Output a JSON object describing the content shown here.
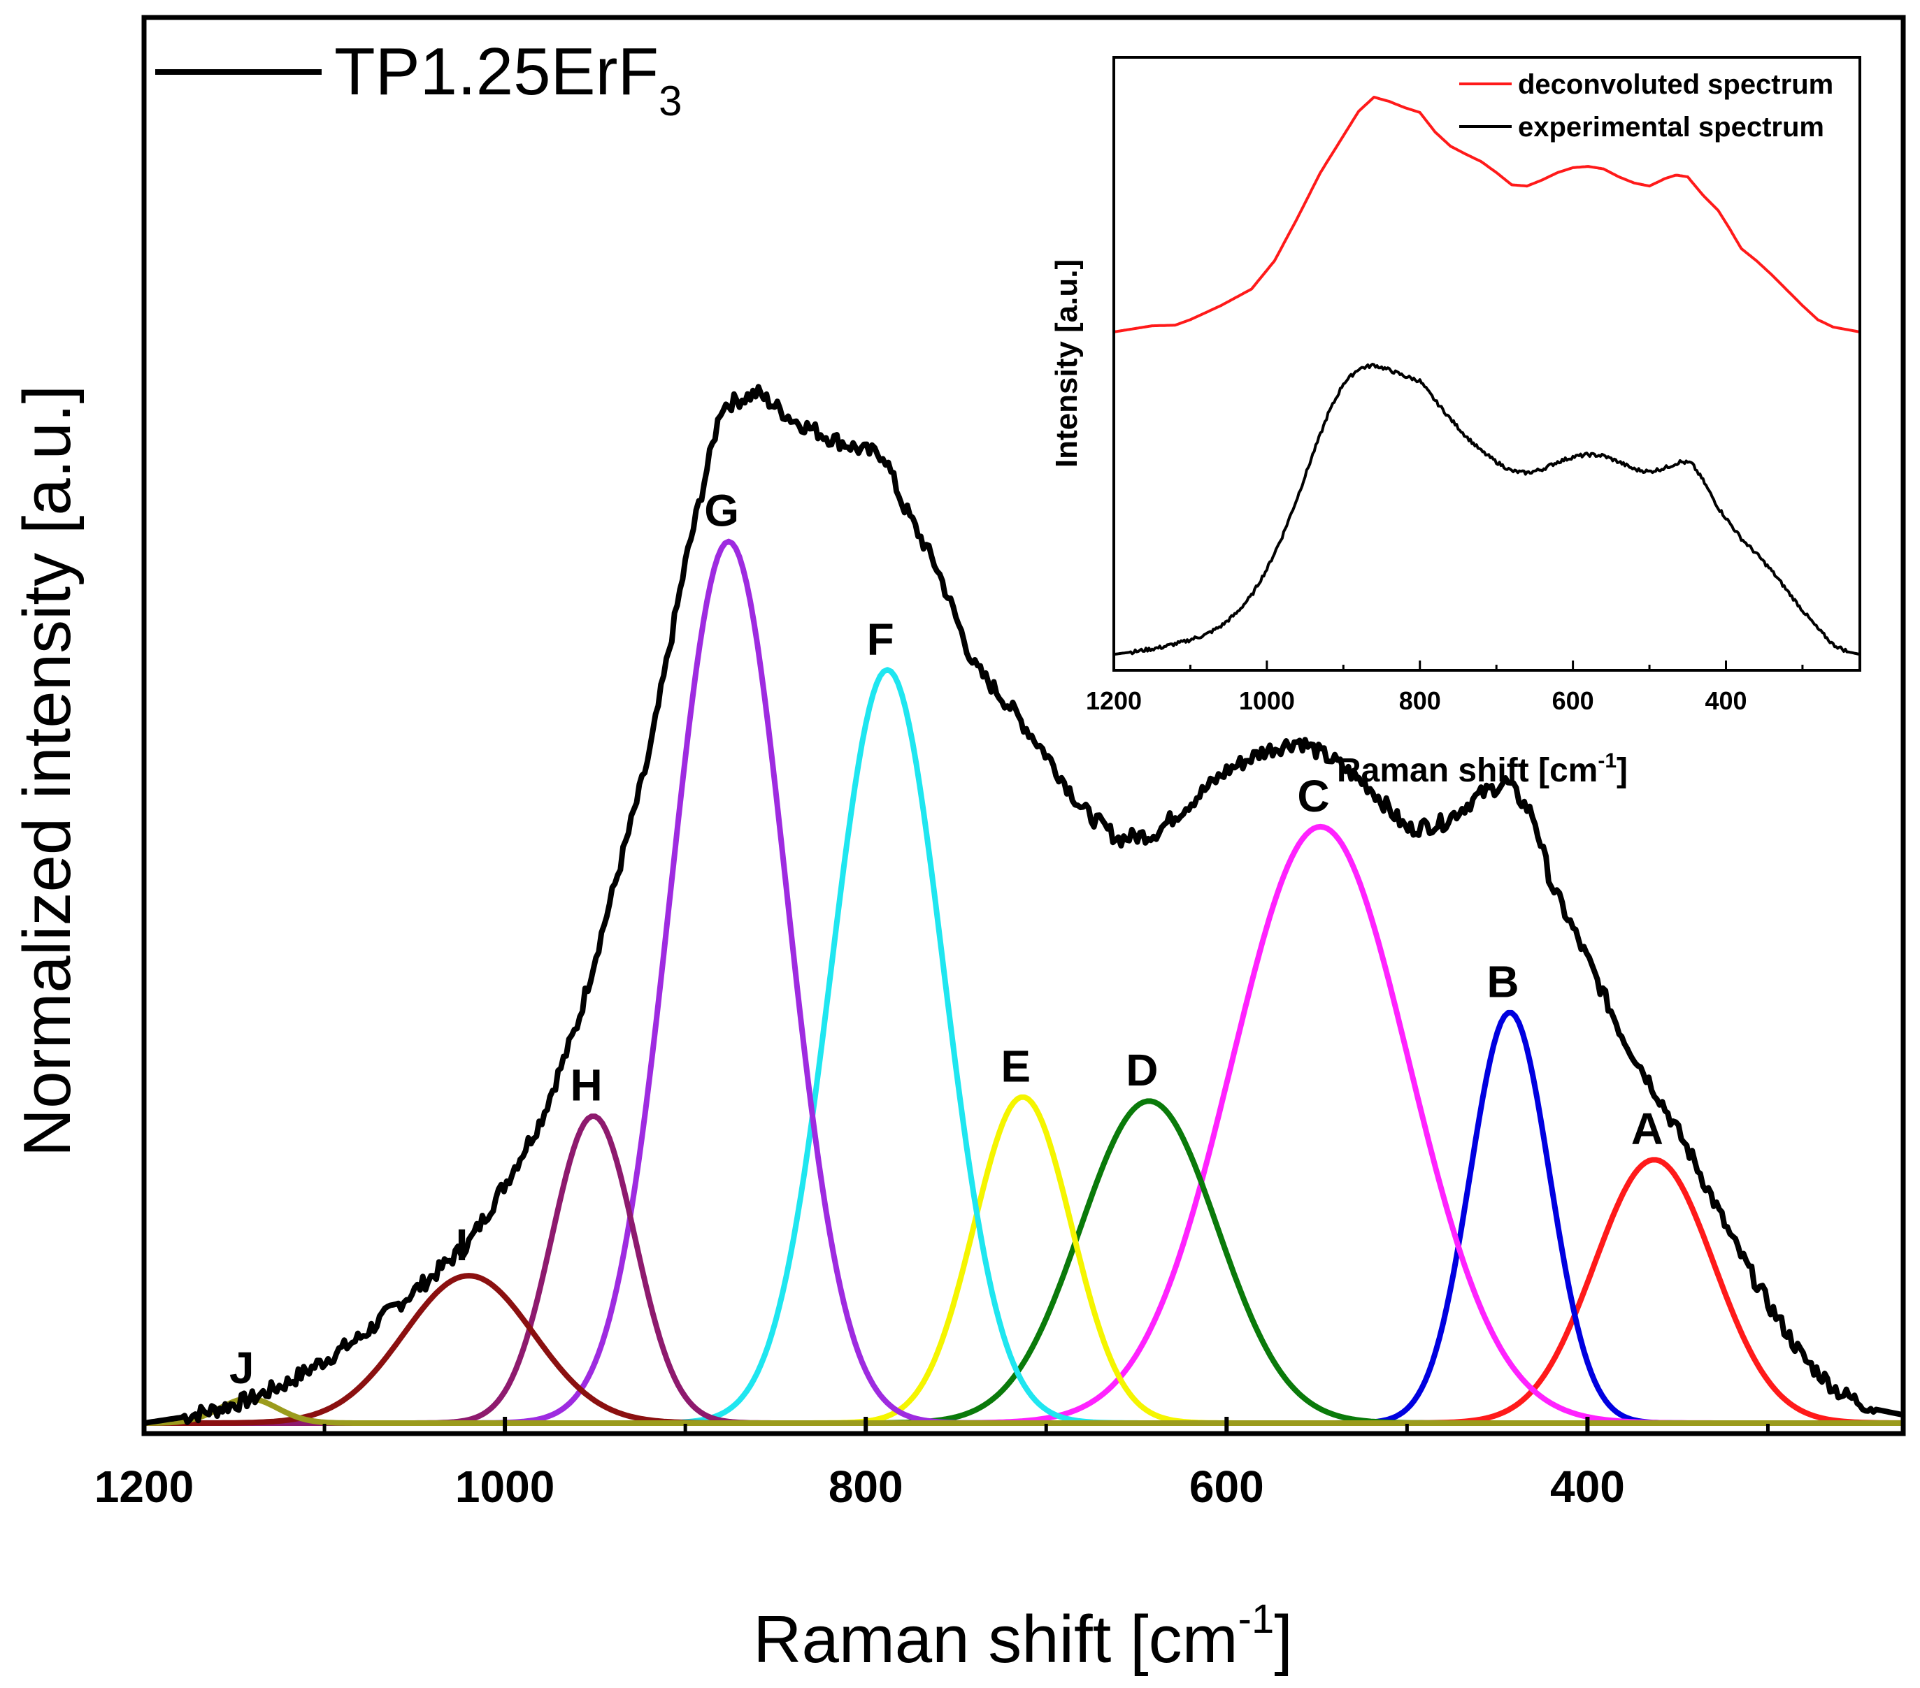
{
  "figure": {
    "legend_label": "TP1.25ErF",
    "legend_subscript": "3",
    "legend_color": "#000000"
  },
  "chart_data": [
    {
      "type": "line",
      "panel": "main",
      "xlabel_main": "Raman shift [cm",
      "xlabel_sup": "-1",
      "xlabel_close": "]",
      "ylabel": "Normalized intensity [a.u.]",
      "xlim": [
        1200,
        225
      ],
      "ylim": [
        0,
        1.03
      ],
      "x_ticks": [
        1200,
        1000,
        800,
        600,
        400
      ],
      "x_tick_labels": [
        "1200",
        "1000",
        "800",
        "600",
        "400"
      ],
      "x_minor_ticks": [
        1100,
        900,
        700,
        500,
        300
      ],
      "y_ticks_shown": false,
      "legend_position": "top-left",
      "series": [
        {
          "name": "TP1.25ErF3",
          "color": "#000000",
          "points": [
            [
              1200,
              0.0
            ],
            [
              1180,
              0.004
            ],
            [
              1160,
              0.01
            ],
            [
              1140,
              0.018
            ],
            [
              1120,
              0.03
            ],
            [
              1100,
              0.046
            ],
            [
              1080,
              0.063
            ],
            [
              1060,
              0.086
            ],
            [
              1040,
              0.108
            ],
            [
              1020,
              0.132
            ],
            [
              1000,
              0.175
            ],
            [
              980,
              0.222
            ],
            [
              960,
              0.292
            ],
            [
              940,
              0.39
            ],
            [
              920,
              0.49
            ],
            [
              900,
              0.63
            ],
            [
              880,
              0.745
            ],
            [
              860,
              0.755
            ],
            [
              840,
              0.735
            ],
            [
              820,
              0.722
            ],
            [
              800,
              0.712
            ],
            [
              790,
              0.71
            ],
            [
              780,
              0.675
            ],
            [
              760,
              0.625
            ],
            [
              740,
              0.555
            ],
            [
              720,
              0.525
            ],
            [
              700,
              0.49
            ],
            [
              680,
              0.45
            ],
            [
              660,
              0.428
            ],
            [
              640,
              0.432
            ],
            [
              620,
              0.455
            ],
            [
              600,
              0.478
            ],
            [
              580,
              0.492
            ],
            [
              560,
              0.5
            ],
            [
              540,
              0.485
            ],
            [
              520,
              0.465
            ],
            [
              500,
              0.435
            ],
            [
              480,
              0.44
            ],
            [
              460,
              0.46
            ],
            [
              445,
              0.47
            ],
            [
              430,
              0.445
            ],
            [
              420,
              0.395
            ],
            [
              400,
              0.34
            ],
            [
              380,
              0.282
            ],
            [
              360,
              0.238
            ],
            [
              340,
              0.19
            ],
            [
              320,
              0.135
            ],
            [
              300,
              0.088
            ],
            [
              280,
              0.047
            ],
            [
              260,
              0.022
            ],
            [
              240,
              0.01
            ],
            [
              225,
              0.006
            ]
          ]
        },
        {
          "name": "A",
          "color": "#ff1a1a",
          "center": 363,
          "amplitude": 0.193,
          "sigma": 33
        },
        {
          "name": "B",
          "color": "#0000e0",
          "center": 443,
          "amplitude": 0.301,
          "sigma": 22
        },
        {
          "name": "C",
          "color": "#ff22ff",
          "center": 548,
          "amplitude": 0.437,
          "sigma": 49
        },
        {
          "name": "D",
          "color": "#0a7a0a",
          "center": 643,
          "amplitude": 0.236,
          "sigma": 38
        },
        {
          "name": "E",
          "color": "#f5f500",
          "center": 713,
          "amplitude": 0.239,
          "sigma": 27
        },
        {
          "name": "F",
          "color": "#1fe6f0",
          "center": 788,
          "amplitude": 0.552,
          "sigma": 31
        },
        {
          "name": "G",
          "color": "#9e2be0",
          "center": 876,
          "amplitude": 0.646,
          "sigma": 32
        },
        {
          "name": "H",
          "color": "#8e1a6e",
          "center": 951,
          "amplitude": 0.225,
          "sigma": 23
        },
        {
          "name": "I",
          "color": "#8b1010",
          "center": 1020,
          "amplitude": 0.108,
          "sigma": 36
        },
        {
          "name": "J",
          "color": "#9b9b1c",
          "center": 1142,
          "amplitude": 0.018,
          "sigma": 16
        }
      ],
      "peak_labels": [
        {
          "text": "A",
          "x": 363
        },
        {
          "text": "B",
          "x": 443
        },
        {
          "text": "C",
          "x": 548
        },
        {
          "text": "D",
          "x": 643
        },
        {
          "text": "E",
          "x": 713
        },
        {
          "text": "F",
          "x": 788
        },
        {
          "text": "G",
          "x": 876
        },
        {
          "text": "H",
          "x": 951
        },
        {
          "text": "I",
          "x": 1020
        },
        {
          "text": "J",
          "x": 1142
        }
      ]
    },
    {
      "type": "line",
      "panel": "inset",
      "xlabel_main": "Raman shift [cm",
      "xlabel_sup": "-1",
      "xlabel_close": "]",
      "ylabel": "Intensity [a.u.]",
      "xlim": [
        1200,
        225
      ],
      "ylim": [
        0,
        1
      ],
      "x_ticks": [
        1200,
        1000,
        800,
        600,
        400
      ],
      "x_tick_labels": [
        "1200",
        "1000",
        "800",
        "600",
        "400"
      ],
      "x_minor_ticks": [
        1100,
        900,
        700,
        500,
        300
      ],
      "legend_position": "top-right",
      "series": [
        {
          "name": "deconvoluted spectrum",
          "color": "#ff1a1a",
          "points": [
            [
              1200,
              0.552
            ],
            [
              1170,
              0.558
            ],
            [
              1150,
              0.562
            ],
            [
              1120,
              0.563
            ],
            [
              1100,
              0.572
            ],
            [
              1060,
              0.595
            ],
            [
              1020,
              0.622
            ],
            [
              990,
              0.668
            ],
            [
              960,
              0.738
            ],
            [
              930,
              0.812
            ],
            [
              900,
              0.872
            ],
            [
              880,
              0.912
            ],
            [
              860,
              0.935
            ],
            [
              840,
              0.928
            ],
            [
              820,
              0.918
            ],
            [
              800,
              0.91
            ],
            [
              780,
              0.878
            ],
            [
              760,
              0.855
            ],
            [
              740,
              0.842
            ],
            [
              720,
              0.83
            ],
            [
              700,
              0.812
            ],
            [
              680,
              0.792
            ],
            [
              660,
              0.79
            ],
            [
              640,
              0.8
            ],
            [
              620,
              0.812
            ],
            [
              600,
              0.82
            ],
            [
              580,
              0.822
            ],
            [
              560,
              0.818
            ],
            [
              540,
              0.805
            ],
            [
              520,
              0.795
            ],
            [
              500,
              0.79
            ],
            [
              480,
              0.802
            ],
            [
              465,
              0.808
            ],
            [
              450,
              0.805
            ],
            [
              430,
              0.775
            ],
            [
              410,
              0.75
            ],
            [
              395,
              0.72
            ],
            [
              380,
              0.688
            ],
            [
              360,
              0.668
            ],
            [
              340,
              0.645
            ],
            [
              320,
              0.62
            ],
            [
              300,
              0.595
            ],
            [
              280,
              0.572
            ],
            [
              260,
              0.56
            ],
            [
              225,
              0.552
            ]
          ]
        },
        {
          "name": "experimental spectrum",
          "color": "#000000",
          "points": [
            [
              1200,
              0.026
            ],
            [
              1170,
              0.031
            ],
            [
              1140,
              0.037
            ],
            [
              1110,
              0.046
            ],
            [
              1080,
              0.058
            ],
            [
              1060,
              0.072
            ],
            [
              1040,
              0.093
            ],
            [
              1020,
              0.122
            ],
            [
              1000,
              0.165
            ],
            [
              980,
              0.218
            ],
            [
              960,
              0.282
            ],
            [
              940,
              0.352
            ],
            [
              920,
              0.418
            ],
            [
              900,
              0.468
            ],
            [
              880,
              0.492
            ],
            [
              860,
              0.498
            ],
            [
              840,
              0.49
            ],
            [
              820,
              0.48
            ],
            [
              800,
              0.472
            ],
            [
              780,
              0.44
            ],
            [
              760,
              0.41
            ],
            [
              740,
              0.382
            ],
            [
              720,
              0.358
            ],
            [
              700,
              0.34
            ],
            [
              680,
              0.325
            ],
            [
              660,
              0.322
            ],
            [
              640,
              0.328
            ],
            [
              620,
              0.34
            ],
            [
              600,
              0.348
            ],
            [
              580,
              0.352
            ],
            [
              560,
              0.35
            ],
            [
              540,
              0.34
            ],
            [
              520,
              0.328
            ],
            [
              500,
              0.324
            ],
            [
              480,
              0.33
            ],
            [
              460,
              0.34
            ],
            [
              445,
              0.338
            ],
            [
              430,
              0.31
            ],
            [
              410,
              0.265
            ],
            [
              395,
              0.24
            ],
            [
              380,
              0.215
            ],
            [
              360,
              0.19
            ],
            [
              340,
              0.162
            ],
            [
              320,
              0.13
            ],
            [
              300,
              0.098
            ],
            [
              280,
              0.068
            ],
            [
              260,
              0.042
            ],
            [
              240,
              0.03
            ],
            [
              225,
              0.026
            ]
          ]
        }
      ]
    }
  ]
}
